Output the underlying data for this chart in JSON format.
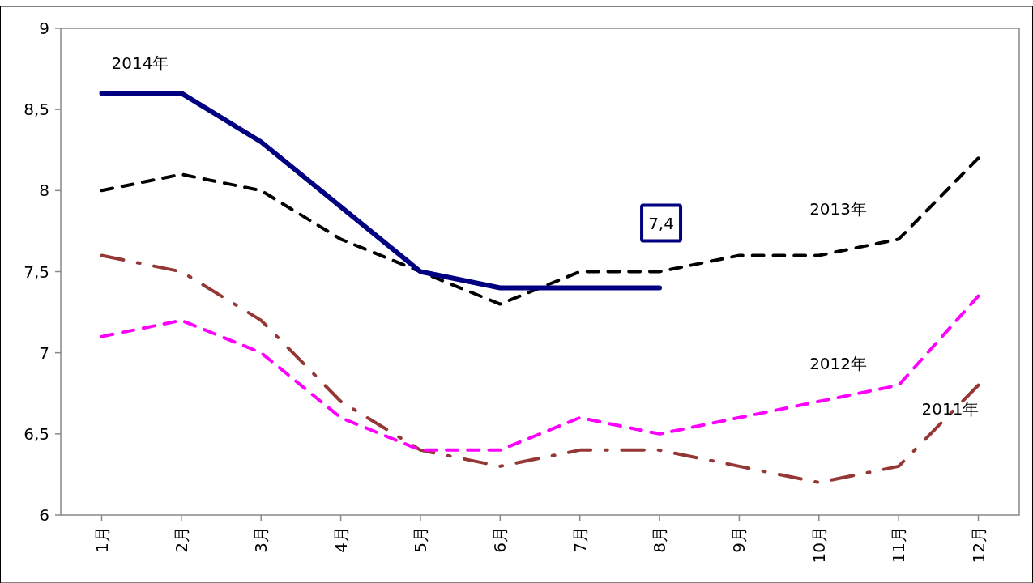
{
  "chart_data": {
    "type": "line",
    "categories": [
      "1月",
      "2月",
      "3月",
      "4月",
      "5月",
      "6月",
      "7月",
      "8月",
      "9月",
      "10月",
      "11月",
      "12月"
    ],
    "ylim": [
      6,
      9
    ],
    "yticks": [
      6,
      {
        "value": 6.5,
        "label": "6,5"
      },
      7,
      {
        "value": 7.5,
        "label": "7,5"
      },
      8,
      {
        "value": 8.5,
        "label": "8,5"
      },
      9
    ],
    "grid": false,
    "marker": "none",
    "series": [
      {
        "name": "2011年",
        "color": "#953735",
        "line_style": "dashdot",
        "values": [
          7.6,
          7.5,
          7.2,
          6.7,
          6.4,
          6.3,
          6.4,
          6.4,
          6.3,
          6.2,
          6.3,
          6.8
        ]
      },
      {
        "name": "2012年",
        "color": "#ff00ff",
        "line_style": "dashed",
        "values": [
          7.1,
          7.2,
          7.0,
          6.6,
          6.4,
          6.4,
          6.6,
          6.5,
          6.6,
          6.7,
          6.8,
          7.35
        ]
      },
      {
        "name": "2013年",
        "color": "#000000",
        "line_style": "dashed",
        "values": [
          8.0,
          8.1,
          8.0,
          7.7,
          7.5,
          7.3,
          7.5,
          7.5,
          7.6,
          7.6,
          7.7,
          8.2
        ]
      },
      {
        "name": "2014年",
        "color": "#000080",
        "line_style": "solid",
        "values": [
          8.6,
          8.6,
          8.3,
          7.9,
          7.5,
          7.4,
          7.4,
          7.4,
          null,
          null,
          null,
          null
        ]
      }
    ],
    "annotations": [
      "7,4"
    ]
  }
}
